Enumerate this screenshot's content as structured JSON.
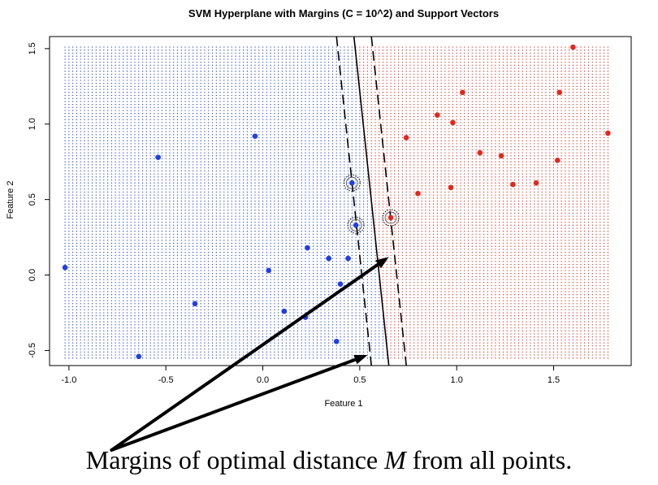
{
  "chart_data": {
    "type": "scatter",
    "title": "SVM Hyperplane with Margins (C = 10^2) and Support Vectors",
    "xlabel": "Feature 1",
    "ylabel": "Feature 2",
    "xlim": [
      -1.1,
      1.9
    ],
    "ylim": [
      -0.6,
      1.58
    ],
    "x_ticks": [
      -1.0,
      -0.5,
      0.0,
      0.5,
      1.0,
      1.5
    ],
    "x_tick_labels": [
      "-1.0",
      "-0.5",
      "0.0",
      "0.5",
      "1.0",
      "1.5"
    ],
    "y_ticks": [
      -0.5,
      0.0,
      0.5,
      1.0,
      1.5
    ],
    "y_tick_labels": [
      "-0.5",
      "0.0",
      "0.5",
      "1.0",
      "1.5"
    ],
    "grid": false,
    "legend": "none",
    "colors": {
      "class_a": "#1f3fe0",
      "class_b": "#e0281c",
      "lines": "#000000",
      "arrows": "#000000"
    },
    "background_grid": {
      "x_range": [
        -1.02,
        1.78
      ],
      "y_range": [
        -0.55,
        1.51
      ],
      "x_step": 0.02,
      "y_step": 0.02,
      "point_colored_by": "side of hyperplane"
    },
    "hyperplane": {
      "x_top": 0.47,
      "x_bottom": 0.65,
      "y_top": 1.58,
      "y_bottom": -0.6
    },
    "margins": [
      {
        "x_top": 0.38,
        "x_bottom": 0.56,
        "y_top": 1.58,
        "y_bottom": -0.6
      },
      {
        "x_top": 0.56,
        "x_bottom": 0.74,
        "y_top": 1.58,
        "y_bottom": -0.6
      }
    ],
    "series": [
      {
        "class": "a",
        "points": [
          [
            -1.02,
            0.05
          ],
          [
            -0.64,
            -0.54
          ],
          [
            -0.54,
            0.78
          ],
          [
            -0.35,
            -0.19
          ],
          [
            -0.04,
            0.92
          ],
          [
            0.03,
            0.03
          ],
          [
            0.11,
            -0.24
          ],
          [
            0.22,
            -0.28
          ],
          [
            0.23,
            0.18
          ],
          [
            0.34,
            0.11
          ],
          [
            0.38,
            -0.44
          ],
          [
            0.4,
            -0.06
          ],
          [
            0.44,
            0.11
          ],
          [
            0.46,
            0.61
          ],
          [
            0.48,
            0.33
          ]
        ]
      },
      {
        "class": "b",
        "points": [
          [
            0.66,
            0.38
          ],
          [
            0.74,
            0.91
          ],
          [
            0.8,
            0.54
          ],
          [
            0.9,
            1.06
          ],
          [
            0.97,
            0.58
          ],
          [
            0.98,
            1.01
          ],
          [
            1.03,
            1.21
          ],
          [
            1.12,
            0.81
          ],
          [
            1.23,
            0.79
          ],
          [
            1.29,
            0.6
          ],
          [
            1.41,
            0.61
          ],
          [
            1.52,
            0.76
          ],
          [
            1.53,
            1.21
          ],
          [
            1.6,
            1.51
          ],
          [
            1.78,
            0.94
          ]
        ]
      }
    ],
    "support_vectors": [
      [
        0.46,
        0.61
      ],
      [
        0.48,
        0.33
      ],
      [
        0.66,
        0.38
      ]
    ],
    "annotation": {
      "text_before": "Margins of optimal distance ",
      "text_var": "M",
      "text_after": " from all points.",
      "arrow_origin": [
        -0.78,
        -1.16
      ],
      "arrow_targets": [
        [
          0.54,
          -0.53
        ],
        [
          0.65,
          0.12
        ]
      ]
    }
  }
}
